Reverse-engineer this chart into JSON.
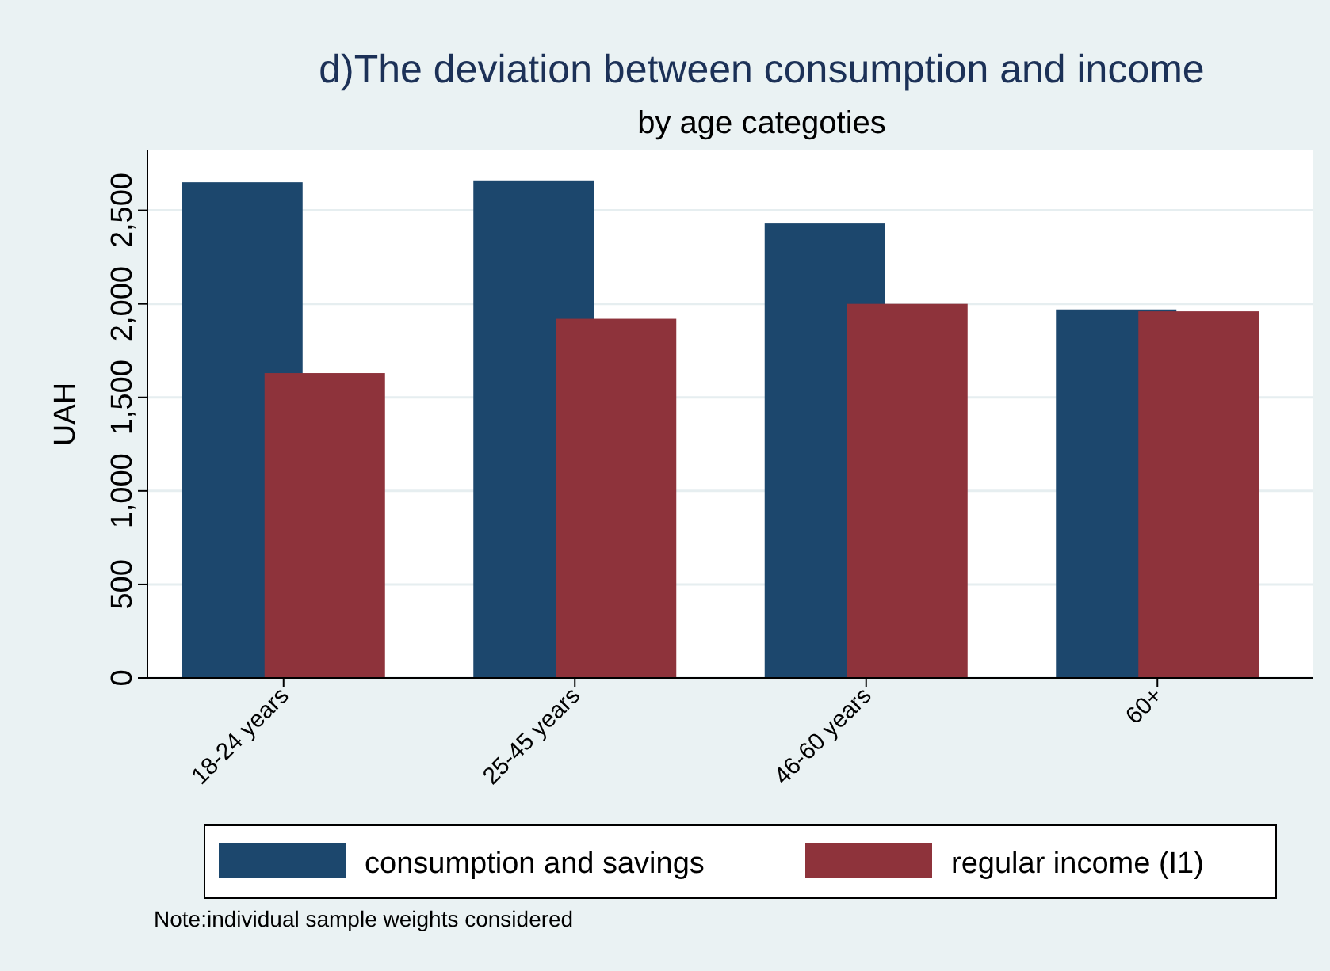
{
  "chart_data": {
    "type": "bar",
    "title": "d)The deviation between consumption and income",
    "subtitle": "by age categoties",
    "ylabel": "UAH",
    "categories": [
      "18-24 years",
      "25-45 years",
      "46-60 years",
      "60+"
    ],
    "series": [
      {
        "name": "consumption and savings",
        "color": "#1c476d",
        "values": [
          2650,
          2660,
          2430,
          1970
        ]
      },
      {
        "name": "regular income (I1)",
        "color": "#8e333b",
        "values": [
          1630,
          1920,
          2000,
          1960
        ]
      }
    ],
    "ylim": [
      0,
      2820
    ],
    "yticks": [
      0,
      500,
      {
        "value": 1000,
        "label": "1,000"
      },
      {
        "value": 1500,
        "label": "1,500"
      },
      {
        "value": 2000,
        "label": "2,000"
      },
      {
        "value": 2500,
        "label": "2,500"
      }
    ],
    "grid": "y",
    "legend": "bottom",
    "annotations": [
      "Note:individual sample weights considered"
    ]
  }
}
